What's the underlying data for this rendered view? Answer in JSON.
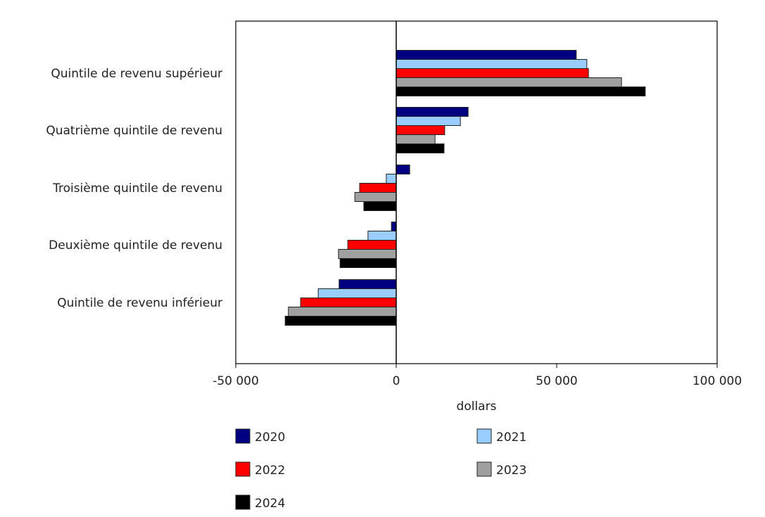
{
  "chart_data": {
    "type": "bar",
    "orientation": "horizontal",
    "title": "",
    "xlabel": "dollars",
    "ylabel": "",
    "xlim": [
      -50000,
      100000
    ],
    "xticks": [
      -50000,
      0,
      50000,
      100000
    ],
    "xtick_labels": [
      "-50 000",
      "0",
      "50 000",
      "100 000"
    ],
    "grid": false,
    "legend_position": "bottom",
    "categories": [
      "Quintile de revenu supérieur",
      "Quatrième quintile de revenu",
      "Troisième quintile de revenu",
      "Deuxième quintile de revenu",
      "Quintile de revenu inférieur"
    ],
    "series": [
      {
        "name": "2020",
        "color": "#000080",
        "values": [
          56100,
          22400,
          4200,
          -1500,
          -17800
        ]
      },
      {
        "name": "2021",
        "color": "#99ccff",
        "values": [
          59400,
          20000,
          -3100,
          -8800,
          -24300
        ]
      },
      {
        "name": "2022",
        "color": "#ff0000",
        "values": [
          59900,
          15100,
          -11400,
          -15100,
          -29800
        ]
      },
      {
        "name": "2023",
        "color": "#a0a0a0",
        "values": [
          70200,
          12100,
          -12900,
          -18000,
          -33600
        ]
      },
      {
        "name": "2024",
        "color": "#000000",
        "values": [
          77600,
          14900,
          -10100,
          -17500,
          -34600
        ]
      }
    ]
  }
}
